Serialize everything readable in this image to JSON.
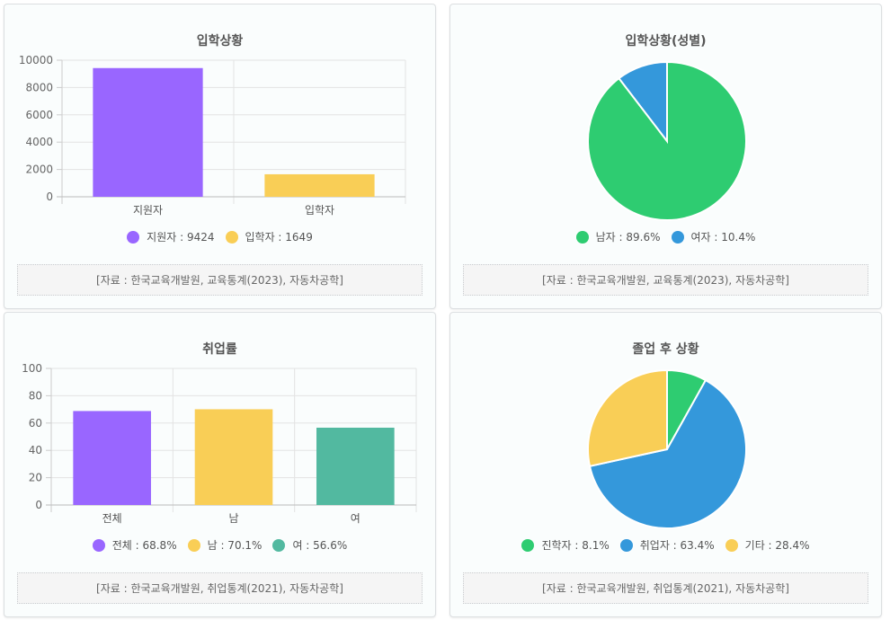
{
  "chart_data": [
    {
      "type": "bar",
      "title": "입학상황",
      "categories": [
        "지원자",
        "입학자"
      ],
      "values": [
        9424,
        1649
      ],
      "colors": [
        "#9966ff",
        "#f9ce56"
      ],
      "ylim": [
        0,
        10000
      ],
      "yticks": [
        "0",
        "2000",
        "4000",
        "6000",
        "8000",
        "10000"
      ],
      "legend": [
        "지원자 : 9424",
        "입학자 : 1649"
      ],
      "legend_position": "bottom",
      "grid": true,
      "source": "[자료 : 한국교육개발원, 교육통계(2023), 자동차공학]"
    },
    {
      "type": "pie",
      "title": "입학상황(성별)",
      "categories": [
        "남자",
        "여자"
      ],
      "values": [
        89.6,
        10.4
      ],
      "colors": [
        "#2ecc71",
        "#3498db"
      ],
      "legend": [
        "남자 : 89.6%",
        "여자 : 10.4%"
      ],
      "legend_position": "bottom",
      "source": "[자료 : 한국교육개발원, 교육통계(2023), 자동차공학]"
    },
    {
      "type": "bar",
      "title": "취업률",
      "categories": [
        "전체",
        "남",
        "여"
      ],
      "values": [
        68.8,
        70.1,
        56.6
      ],
      "colors": [
        "#9966ff",
        "#f9ce56",
        "#52b9a0"
      ],
      "ylim": [
        0,
        100
      ],
      "yticks": [
        "0",
        "20",
        "40",
        "60",
        "80",
        "100"
      ],
      "legend": [
        "전체 : 68.8%",
        "남 : 70.1%",
        "여 : 56.6%"
      ],
      "legend_position": "bottom",
      "grid": true,
      "source": "[자료 : 한국교육개발원, 취업통계(2021), 자동차공학]"
    },
    {
      "type": "pie",
      "title": "졸업 후 상황",
      "categories": [
        "진학자",
        "취업자",
        "기타"
      ],
      "values": [
        8.1,
        63.4,
        28.4
      ],
      "colors": [
        "#2ecc71",
        "#3498db",
        "#f9ce56"
      ],
      "legend": [
        "진학자 : 8.1%",
        "취업자 : 63.4%",
        "기타 : 28.4%"
      ],
      "legend_position": "bottom",
      "source": "[자료 : 한국교육개발원, 취업통계(2021), 자동차공학]"
    }
  ]
}
